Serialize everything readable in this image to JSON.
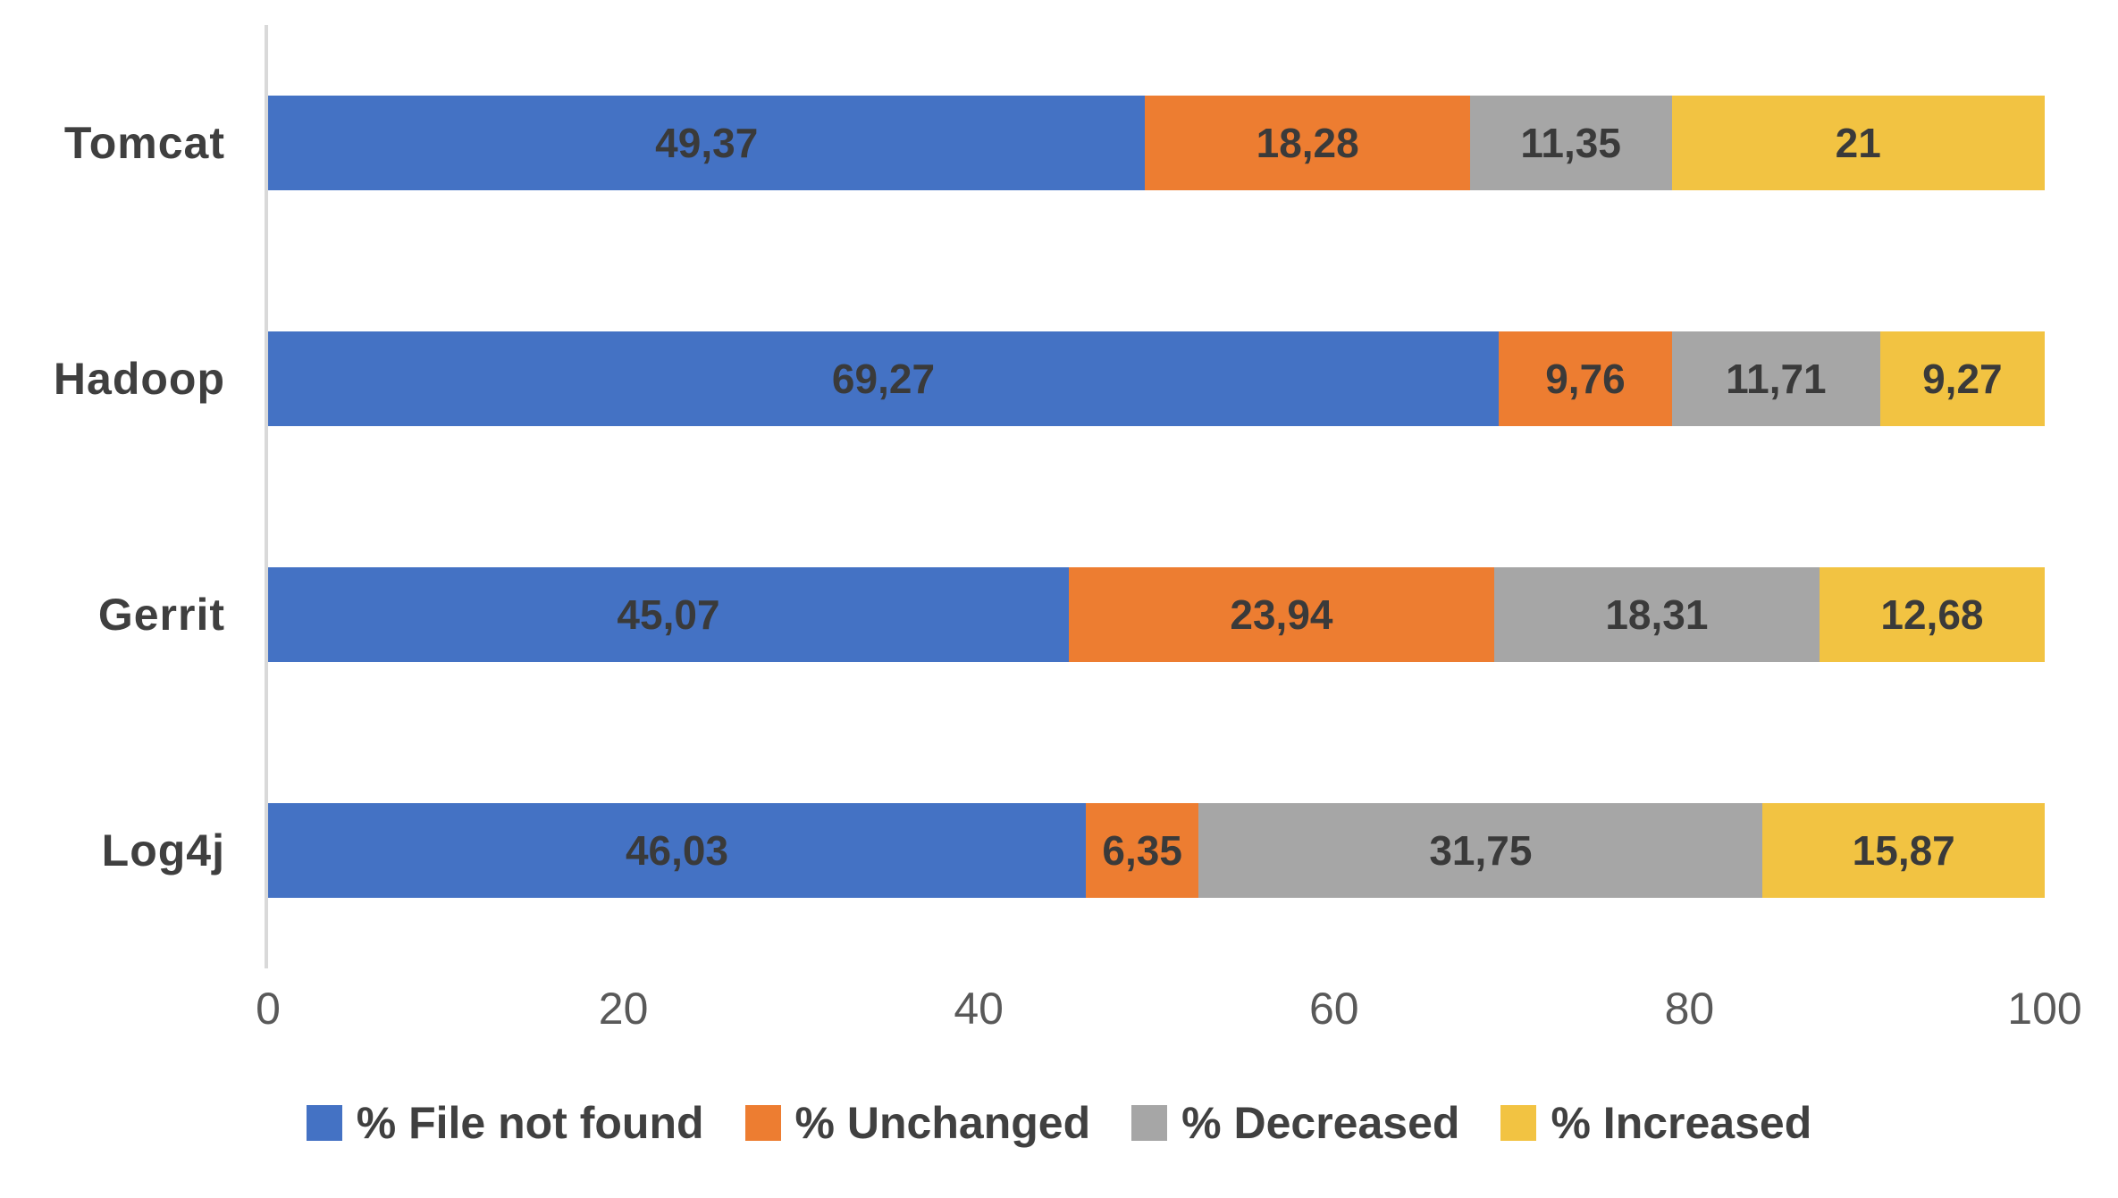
{
  "chart_data": {
    "type": "bar",
    "orientation": "horizontal",
    "stacked": true,
    "title": "",
    "categories": [
      "Tomcat",
      "Hadoop",
      "Gerrit",
      "Log4j"
    ],
    "series": [
      {
        "name": "% File not found",
        "color": "#4472C4",
        "values": [
          49.37,
          69.27,
          45.07,
          46.03
        ],
        "labels": [
          "49,37",
          "69,27",
          "45,07",
          "46,03"
        ]
      },
      {
        "name": "% Unchanged",
        "color": "#ED7D31",
        "values": [
          18.28,
          9.76,
          23.94,
          6.35
        ],
        "labels": [
          "18,28",
          "9,76",
          "23,94",
          "6,35"
        ]
      },
      {
        "name": "% Decreased",
        "color": "#A6A6A6",
        "values": [
          11.35,
          11.71,
          18.31,
          31.75
        ],
        "labels": [
          "11,35",
          "11,71",
          "18,31",
          "31,75"
        ]
      },
      {
        "name": "% Increased",
        "color": "#F2C342",
        "values": [
          21,
          9.27,
          12.68,
          15.87
        ],
        "labels": [
          "21",
          "9,27",
          "12,68",
          "15,87"
        ]
      }
    ],
    "x_axis": {
      "min": 0,
      "max": 100,
      "tick_values": [
        0,
        20,
        40,
        60,
        80,
        100
      ],
      "ticks": [
        "0",
        "20",
        "40",
        "60",
        "80",
        "100"
      ]
    },
    "legend_position": "bottom",
    "grid": false,
    "colors": {
      "axis_line": "#D9D9D9",
      "category_label": "#3F3F3F",
      "value_label": "#3A3A3A",
      "tick_label": "#595959",
      "legend_label": "#404040",
      "background": "#FFFFFF"
    }
  }
}
